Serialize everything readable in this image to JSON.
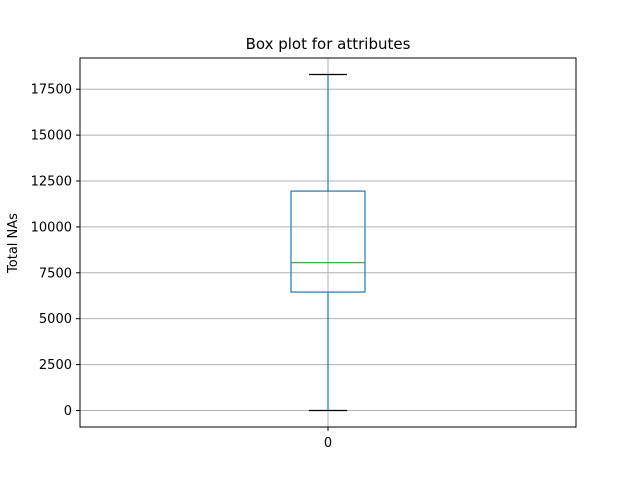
{
  "chart_data": {
    "type": "box",
    "title": "Box plot for attributes",
    "xlabel": "",
    "ylabel": "Total NAs",
    "categories": [
      "0"
    ],
    "boxes": [
      {
        "whisker_low": 0,
        "q1": 6450,
        "median": 8050,
        "q3": 11950,
        "whisker_high": 18300
      }
    ],
    "yticks": [
      0,
      2500,
      5000,
      7500,
      10000,
      12500,
      15000,
      17500
    ],
    "ytick_labels": [
      "0",
      "2500",
      "5000",
      "7500",
      "10000",
      "12500",
      "15000",
      "17500"
    ],
    "ylim": [
      -900,
      19200
    ],
    "grid": true,
    "colors": {
      "box": "#1f77b4",
      "median": "#2ca02c",
      "whisker_cap": "#000000",
      "grid": "#b0b0b0"
    }
  }
}
